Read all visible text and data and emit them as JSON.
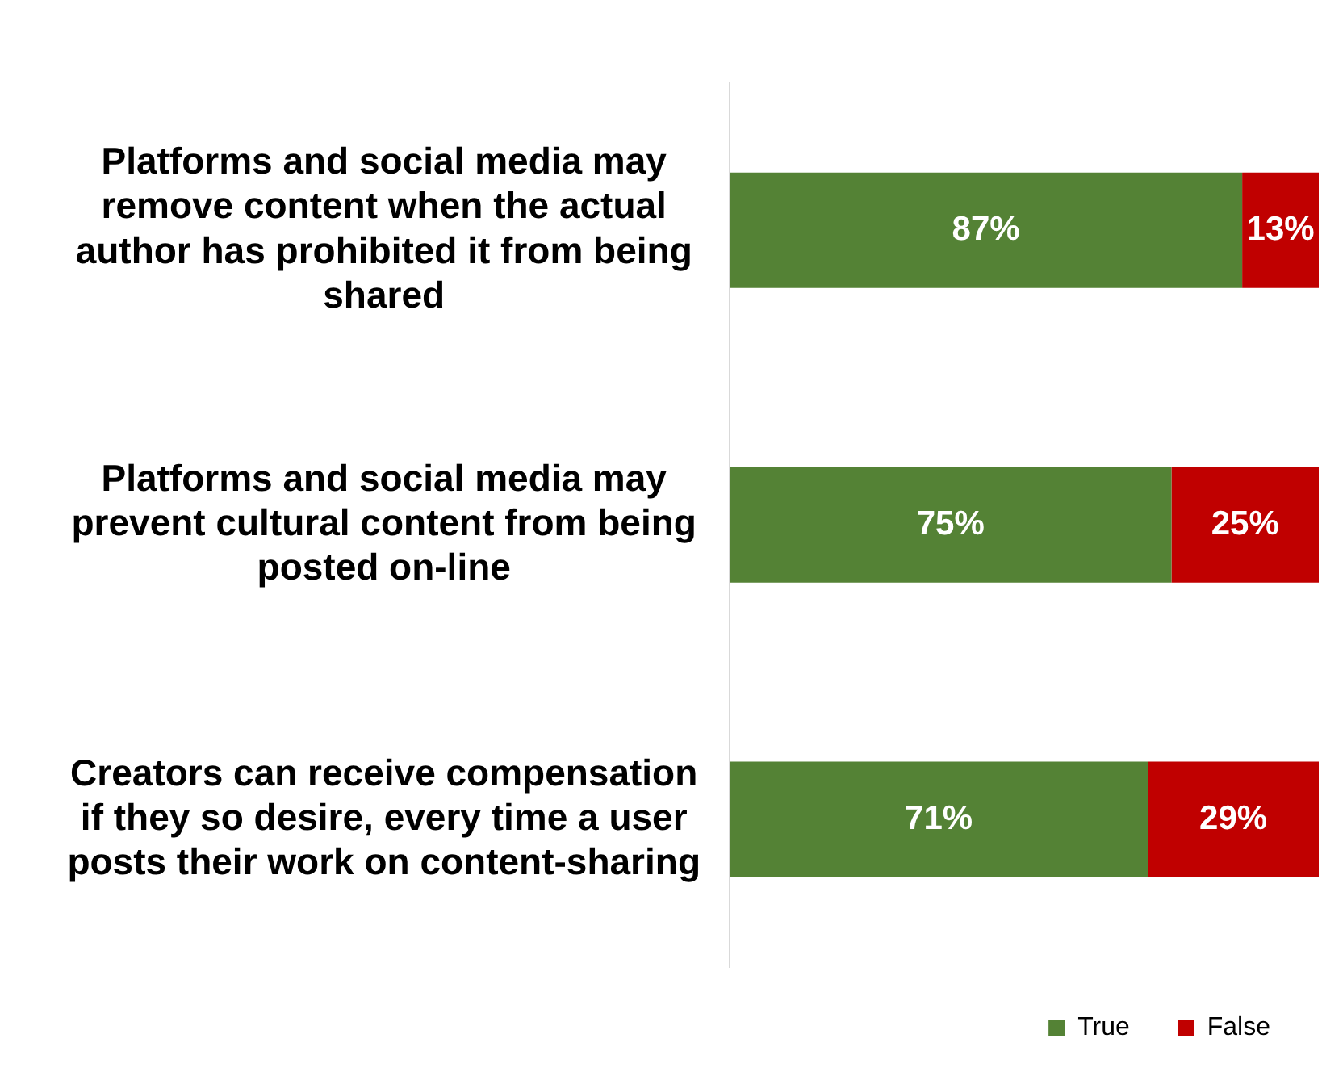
{
  "chart_data": {
    "type": "bar",
    "orientation": "horizontal",
    "stacked": true,
    "categories": [
      "Platforms and social media may remove content when the actual author has prohibited it from being shared",
      "Platforms and social media may prevent cultural content from being posted on-line",
      "Creators can receive compensation if they so desire, every time a user posts their work on content-sharing"
    ],
    "series": [
      {
        "name": "True",
        "color": "#548235",
        "values": [
          87,
          75,
          71
        ],
        "value_labels": [
          "87%",
          "75%",
          "71%"
        ]
      },
      {
        "name": "False",
        "color": "#c00000",
        "values": [
          13,
          25,
          29
        ],
        "value_labels": [
          "13%",
          "25%",
          "29%"
        ]
      }
    ],
    "tick_labels": "y",
    "legend": "bottom right",
    "grid": false
  }
}
